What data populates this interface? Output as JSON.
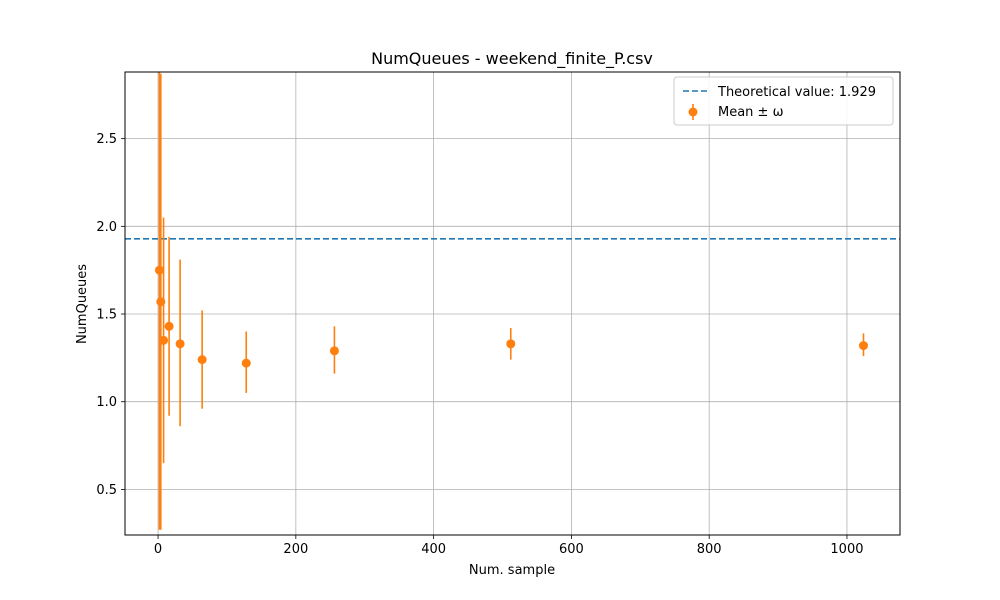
{
  "chart_data": {
    "type": "scatter",
    "title": "NumQueues - weekend_finite_P.csv",
    "xlabel": "Num. sample",
    "ylabel": "NumQueues",
    "xlim": [
      -48,
      1077
    ],
    "ylim": [
      0.24,
      2.88
    ],
    "xticks": [
      0,
      200,
      400,
      600,
      800,
      1000
    ],
    "yticks": [
      0.5,
      1.0,
      1.5,
      2.0,
      2.5
    ],
    "xtick_labels": [
      "0",
      "200",
      "400",
      "600",
      "800",
      "1000"
    ],
    "ytick_labels": [
      "0.5",
      "1.0",
      "1.5",
      "2.0",
      "2.5"
    ],
    "grid": true,
    "legend_position": "top-right",
    "reference_line": {
      "label": "Theoretical value: 1.929",
      "y": 1.929,
      "color": "#1f77b4",
      "style": "dashed"
    },
    "series": [
      {
        "name": "Mean ± ω",
        "color": "#ff7f0e",
        "points": [
          {
            "x": 2,
            "y": 1.75,
            "lo": 0.27,
            "hi": 2.88
          },
          {
            "x": 4,
            "y": 1.57,
            "lo": 0.27,
            "hi": 2.87
          },
          {
            "x": 8,
            "y": 1.35,
            "lo": 0.65,
            "hi": 2.05
          },
          {
            "x": 16,
            "y": 1.43,
            "lo": 0.92,
            "hi": 1.94
          },
          {
            "x": 32,
            "y": 1.33,
            "lo": 0.86,
            "hi": 1.81
          },
          {
            "x": 64,
            "y": 1.24,
            "lo": 0.96,
            "hi": 1.52
          },
          {
            "x": 128,
            "y": 1.22,
            "lo": 1.05,
            "hi": 1.4
          },
          {
            "x": 256,
            "y": 1.29,
            "lo": 1.16,
            "hi": 1.43
          },
          {
            "x": 512,
            "y": 1.33,
            "lo": 1.24,
            "hi": 1.42
          },
          {
            "x": 1024,
            "y": 1.32,
            "lo": 1.26,
            "hi": 1.39
          }
        ]
      }
    ]
  }
}
